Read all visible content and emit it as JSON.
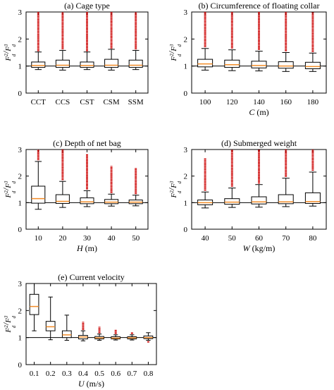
{
  "chart_data": [
    {
      "type": "box",
      "title": "(a) Cage type",
      "xlabel": "",
      "ylabel": "F_d^2/F_d^3",
      "ylim": [
        0,
        3
      ],
      "yticks": [
        0,
        1,
        2,
        3
      ],
      "categories": [
        "CCT",
        "CCS",
        "CST",
        "CSM",
        "SSM"
      ],
      "boxes": [
        {
          "whislo": 0.87,
          "q1": 0.95,
          "med": 1.02,
          "q3": 1.15,
          "whishi": 1.52,
          "fliers_range": [
            1.55,
            3.0
          ]
        },
        {
          "whislo": 0.85,
          "q1": 0.95,
          "med": 1.03,
          "q3": 1.22,
          "whishi": 1.58,
          "fliers_range": [
            1.62,
            3.0
          ]
        },
        {
          "whislo": 0.87,
          "q1": 0.95,
          "med": 1.02,
          "q3": 1.15,
          "whishi": 1.52,
          "fliers_range": [
            1.55,
            3.0
          ]
        },
        {
          "whislo": 0.85,
          "q1": 0.95,
          "med": 1.03,
          "q3": 1.25,
          "whishi": 1.62,
          "fliers_range": [
            1.65,
            3.0
          ]
        },
        {
          "whislo": 0.87,
          "q1": 0.95,
          "med": 1.03,
          "q3": 1.22,
          "whishi": 1.58,
          "fliers_range": [
            1.62,
            3.0
          ]
        }
      ],
      "reference_line": 1
    },
    {
      "type": "box",
      "title": "(b) Circumference of floating collar",
      "xlabel": "C (m)",
      "ylabel": "F_d^2/F_d^3",
      "ylim": [
        0,
        3
      ],
      "yticks": [
        0,
        1,
        2,
        3
      ],
      "categories": [
        "100",
        "120",
        "140",
        "160",
        "180"
      ],
      "boxes": [
        {
          "whislo": 0.85,
          "q1": 0.97,
          "med": 1.08,
          "q3": 1.25,
          "whishi": 1.65,
          "fliers_range": [
            1.7,
            3.0
          ]
        },
        {
          "whislo": 0.83,
          "q1": 0.95,
          "med": 1.05,
          "q3": 1.22,
          "whishi": 1.6,
          "fliers_range": [
            1.65,
            3.0
          ]
        },
        {
          "whislo": 0.82,
          "q1": 0.93,
          "med": 1.02,
          "q3": 1.18,
          "whishi": 1.55,
          "fliers_range": [
            1.6,
            3.0
          ]
        },
        {
          "whislo": 0.8,
          "q1": 0.92,
          "med": 1.0,
          "q3": 1.16,
          "whishi": 1.5,
          "fliers_range": [
            1.55,
            3.0
          ]
        },
        {
          "whislo": 0.8,
          "q1": 0.9,
          "med": 0.98,
          "q3": 1.14,
          "whishi": 1.48,
          "fliers_range": [
            1.52,
            3.0
          ]
        }
      ],
      "reference_line": 1
    },
    {
      "type": "box",
      "title": "(c) Depth of net bag",
      "xlabel": "H (m)",
      "ylabel": "F_d^2/F_d^3",
      "ylim": [
        0,
        3
      ],
      "yticks": [
        0,
        1,
        2,
        3
      ],
      "categories": [
        "10",
        "20",
        "30",
        "40",
        "50"
      ],
      "boxes": [
        {
          "whislo": 0.75,
          "q1": 0.98,
          "med": 1.15,
          "q3": 1.62,
          "whishi": 2.55,
          "fliers_range": [
            2.6,
            3.0
          ]
        },
        {
          "whislo": 0.82,
          "q1": 0.97,
          "med": 1.05,
          "q3": 1.3,
          "whishi": 1.8,
          "fliers_range": [
            1.85,
            3.0
          ]
        },
        {
          "whislo": 0.85,
          "q1": 0.96,
          "med": 1.03,
          "q3": 1.18,
          "whishi": 1.45,
          "fliers_range": [
            1.5,
            2.82
          ]
        },
        {
          "whislo": 0.87,
          "q1": 0.96,
          "med": 1.02,
          "q3": 1.12,
          "whishi": 1.32,
          "fliers_range": [
            1.36,
            2.38
          ]
        },
        {
          "whislo": 0.88,
          "q1": 0.96,
          "med": 1.02,
          "q3": 1.1,
          "whishi": 1.28,
          "fliers_range": [
            1.32,
            2.3
          ]
        }
      ],
      "reference_line": 1
    },
    {
      "type": "box",
      "title": "(d) Submerged weight",
      "xlabel": "W (kg/m)",
      "ylabel": "F_d^2/F_d^3",
      "ylim": [
        0,
        3
      ],
      "yticks": [
        0,
        1,
        2,
        3
      ],
      "categories": [
        "40",
        "50",
        "60",
        "70",
        "80"
      ],
      "boxes": [
        {
          "whislo": 0.8,
          "q1": 0.92,
          "med": 1.0,
          "q3": 1.1,
          "whishi": 1.4,
          "fliers_range": [
            1.45,
            2.68
          ]
        },
        {
          "whislo": 0.82,
          "q1": 0.94,
          "med": 1.02,
          "q3": 1.15,
          "whishi": 1.55,
          "fliers_range": [
            1.6,
            3.0
          ]
        },
        {
          "whislo": 0.83,
          "q1": 0.95,
          "med": 1.03,
          "q3": 1.22,
          "whishi": 1.68,
          "fliers_range": [
            1.72,
            3.0
          ]
        },
        {
          "whislo": 0.85,
          "q1": 0.96,
          "med": 1.03,
          "q3": 1.3,
          "whishi": 1.92,
          "fliers_range": [
            1.97,
            3.0
          ]
        },
        {
          "whislo": 0.87,
          "q1": 0.97,
          "med": 1.04,
          "q3": 1.37,
          "whishi": 2.15,
          "fliers_range": [
            2.2,
            3.0
          ]
        }
      ],
      "reference_line": 1
    },
    {
      "type": "box",
      "title": "(e) Current velocity",
      "xlabel": "U (m/s)",
      "ylabel": "F_d^2/F_d^3",
      "ylim": [
        0,
        3
      ],
      "yticks": [
        0,
        1,
        2,
        3
      ],
      "categories": [
        "0.1",
        "0.2",
        "0.3",
        "0.4",
        "0.5",
        "0.6",
        "0.7",
        "0.8"
      ],
      "boxes": [
        {
          "whislo": 1.25,
          "q1": 1.85,
          "med": 2.15,
          "q3": 2.6,
          "whishi": 3.0,
          "fliers_range": null
        },
        {
          "whislo": 0.92,
          "q1": 1.25,
          "med": 1.4,
          "q3": 1.6,
          "whishi": 2.5,
          "fliers_range": null
        },
        {
          "whislo": 0.9,
          "q1": 1.0,
          "med": 1.1,
          "q3": 1.25,
          "whishi": 1.83,
          "fliers_range": null
        },
        {
          "whislo": 0.88,
          "q1": 0.95,
          "med": 1.02,
          "q3": 1.08,
          "whishi": 1.25,
          "fliers_range": [
            1.28,
            1.58
          ]
        },
        {
          "whislo": 0.9,
          "q1": 0.95,
          "med": 0.99,
          "q3": 1.04,
          "whishi": 1.13,
          "fliers_range": [
            1.16,
            1.4
          ]
        },
        {
          "whislo": 0.91,
          "q1": 0.95,
          "med": 0.98,
          "q3": 1.03,
          "whishi": 1.1,
          "fliers_range": [
            1.13,
            1.3
          ]
        },
        {
          "whislo": 0.91,
          "q1": 0.95,
          "med": 0.99,
          "q3": 1.03,
          "whishi": 1.1,
          "fliers_range": [
            1.13,
            1.2
          ]
        },
        {
          "whislo": 0.9,
          "q1": 0.96,
          "med": 1.0,
          "q3": 1.06,
          "whishi": 1.18,
          "fliers_range": [
            0.82,
            0.88
          ]
        }
      ],
      "reference_line": 1
    }
  ],
  "colors": {
    "median": "#f28c28",
    "flier": "#cc0000",
    "box": "#000000",
    "reference_line": "#000000"
  }
}
